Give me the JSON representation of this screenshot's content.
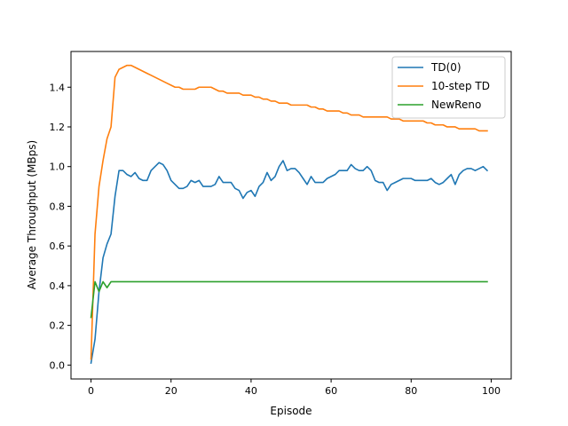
{
  "chart_data": {
    "type": "line",
    "xlabel": "Episode",
    "ylabel": "Average Throughput (MBps)",
    "xlim": [
      -5,
      105
    ],
    "ylim": [
      -0.07,
      1.58
    ],
    "x_ticks": [
      0,
      20,
      40,
      60,
      80,
      100
    ],
    "y_ticks": [
      0.0,
      0.2,
      0.4,
      0.6,
      0.8,
      1.0,
      1.2,
      1.4
    ],
    "x_tick_labels": [
      "0",
      "20",
      "40",
      "60",
      "80",
      "100"
    ],
    "y_tick_labels": [
      "0.0",
      "0.2",
      "0.4",
      "0.6",
      "0.8",
      "1.0",
      "1.2",
      "1.4"
    ],
    "grid": false,
    "legend_position": "top-right",
    "x": [
      0,
      1,
      2,
      3,
      4,
      5,
      6,
      7,
      8,
      9,
      10,
      11,
      12,
      13,
      14,
      15,
      16,
      17,
      18,
      19,
      20,
      21,
      22,
      23,
      24,
      25,
      26,
      27,
      28,
      29,
      30,
      31,
      32,
      33,
      34,
      35,
      36,
      37,
      38,
      39,
      40,
      41,
      42,
      43,
      44,
      45,
      46,
      47,
      48,
      49,
      50,
      51,
      52,
      53,
      54,
      55,
      56,
      57,
      58,
      59,
      60,
      61,
      62,
      63,
      64,
      65,
      66,
      67,
      68,
      69,
      70,
      71,
      72,
      73,
      74,
      75,
      76,
      77,
      78,
      79,
      80,
      81,
      82,
      83,
      84,
      85,
      86,
      87,
      88,
      89,
      90,
      91,
      92,
      93,
      94,
      95,
      96,
      97,
      98,
      99
    ],
    "series": [
      {
        "name": "TD(0)",
        "color": "#1f77b4",
        "values": [
          0.01,
          0.13,
          0.37,
          0.54,
          0.61,
          0.66,
          0.85,
          0.98,
          0.98,
          0.96,
          0.95,
          0.97,
          0.94,
          0.93,
          0.93,
          0.98,
          1.0,
          1.02,
          1.01,
          0.98,
          0.93,
          0.91,
          0.89,
          0.89,
          0.9,
          0.93,
          0.92,
          0.93,
          0.9,
          0.9,
          0.9,
          0.91,
          0.95,
          0.92,
          0.92,
          0.92,
          0.89,
          0.88,
          0.84,
          0.87,
          0.88,
          0.85,
          0.9,
          0.92,
          0.97,
          0.93,
          0.95,
          1.0,
          1.03,
          0.98,
          0.99,
          0.99,
          0.97,
          0.94,
          0.91,
          0.95,
          0.92,
          0.92,
          0.92,
          0.94,
          0.95,
          0.96,
          0.98,
          0.98,
          0.98,
          1.01,
          0.99,
          0.98,
          0.98,
          1.0,
          0.98,
          0.93,
          0.92,
          0.92,
          0.88,
          0.91,
          0.92,
          0.93,
          0.94,
          0.94,
          0.94,
          0.93,
          0.93,
          0.93,
          0.93,
          0.94,
          0.92,
          0.91,
          0.92,
          0.94,
          0.96,
          0.91,
          0.96,
          0.98,
          0.99,
          0.99,
          0.98,
          0.99,
          1.0,
          0.98
        ]
      },
      {
        "name": "10-step TD",
        "color": "#ff7f0e",
        "values": [
          0.03,
          0.66,
          0.9,
          1.03,
          1.14,
          1.2,
          1.45,
          1.49,
          1.5,
          1.51,
          1.51,
          1.5,
          1.49,
          1.48,
          1.47,
          1.46,
          1.45,
          1.44,
          1.43,
          1.42,
          1.41,
          1.4,
          1.4,
          1.39,
          1.39,
          1.39,
          1.39,
          1.4,
          1.4,
          1.4,
          1.4,
          1.39,
          1.38,
          1.38,
          1.37,
          1.37,
          1.37,
          1.37,
          1.36,
          1.36,
          1.36,
          1.35,
          1.35,
          1.34,
          1.34,
          1.33,
          1.33,
          1.32,
          1.32,
          1.32,
          1.31,
          1.31,
          1.31,
          1.31,
          1.31,
          1.3,
          1.3,
          1.29,
          1.29,
          1.28,
          1.28,
          1.28,
          1.28,
          1.27,
          1.27,
          1.26,
          1.26,
          1.26,
          1.25,
          1.25,
          1.25,
          1.25,
          1.25,
          1.25,
          1.25,
          1.24,
          1.24,
          1.24,
          1.23,
          1.23,
          1.23,
          1.23,
          1.23,
          1.23,
          1.22,
          1.22,
          1.21,
          1.21,
          1.21,
          1.2,
          1.2,
          1.2,
          1.19,
          1.19,
          1.19,
          1.19,
          1.19,
          1.18,
          1.18,
          1.18
        ]
      },
      {
        "name": "NewReno",
        "color": "#2ca02c",
        "values": [
          0.24,
          0.42,
          0.37,
          0.42,
          0.39,
          0.42,
          0.42,
          0.42,
          0.42,
          0.42,
          0.42,
          0.42,
          0.42,
          0.42,
          0.42,
          0.42,
          0.42,
          0.42,
          0.42,
          0.42,
          0.42,
          0.42,
          0.42,
          0.42,
          0.42,
          0.42,
          0.42,
          0.42,
          0.42,
          0.42,
          0.42,
          0.42,
          0.42,
          0.42,
          0.42,
          0.42,
          0.42,
          0.42,
          0.42,
          0.42,
          0.42,
          0.42,
          0.42,
          0.42,
          0.42,
          0.42,
          0.42,
          0.42,
          0.42,
          0.42,
          0.42,
          0.42,
          0.42,
          0.42,
          0.42,
          0.42,
          0.42,
          0.42,
          0.42,
          0.42,
          0.42,
          0.42,
          0.42,
          0.42,
          0.42,
          0.42,
          0.42,
          0.42,
          0.42,
          0.42,
          0.42,
          0.42,
          0.42,
          0.42,
          0.42,
          0.42,
          0.42,
          0.42,
          0.42,
          0.42,
          0.42,
          0.42,
          0.42,
          0.42,
          0.42,
          0.42,
          0.42,
          0.42,
          0.42,
          0.42,
          0.42,
          0.42,
          0.42,
          0.42,
          0.42,
          0.42,
          0.42,
          0.42,
          0.42,
          0.42
        ]
      }
    ]
  }
}
